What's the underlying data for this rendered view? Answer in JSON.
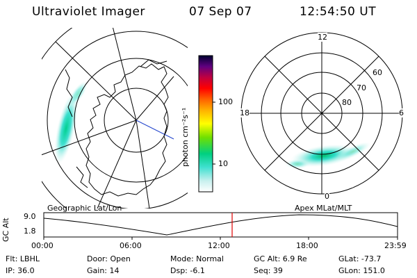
{
  "header": {
    "instrument": "Ultraviolet Imager",
    "date": "07 Sep 07",
    "time": "12:54:50 UT"
  },
  "colorbar": {
    "unit_label": "photon cm⁻²s⁻¹",
    "ticks": [
      "100",
      "10"
    ]
  },
  "panels": {
    "left_label": "Geographic Lat/Lon",
    "right_label": "Apex  MLat/MLT"
  },
  "polar_plot": {
    "mlt_labels": {
      "top": "12",
      "left": "18",
      "right": "6",
      "bottom": "0"
    },
    "mlat_labels": [
      "60",
      "70",
      "80"
    ]
  },
  "altitude_plot": {
    "ylabel": "GC Alt",
    "yticks": [
      "9.0",
      "1.8"
    ],
    "xticks": [
      "00:00",
      "06:00",
      "12:00",
      "18:00",
      "23:59"
    ]
  },
  "status": {
    "flt": "Flt: LBHL",
    "ip": "IP: 36.0",
    "door": "Door: Open",
    "gain": "Gain: 14",
    "mode": "Mode: Normal",
    "dsp": "Dsp:   -6.1",
    "gcalt": "GC Alt: 6.9 Re",
    "seq": "Seq: 39",
    "glat": "GLat: -73.7",
    "glon": "GLon: 151.0"
  },
  "colors": {
    "marker_line": "#e00000",
    "aurora_core": "#00cc88",
    "aurora_edge": "#b8ece4"
  }
}
